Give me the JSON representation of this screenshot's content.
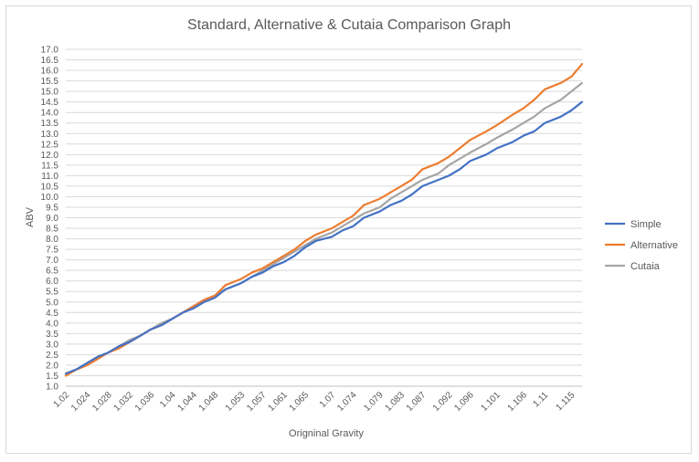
{
  "chart_data": {
    "type": "line",
    "title": "Standard, Alternative & Cutaia Comparison Graph",
    "xlabel": "Origninal Gravity",
    "ylabel": "ABV",
    "ylim": [
      1.0,
      17.0
    ],
    "ytick_step": 0.5,
    "grid": true,
    "legend_position": "right",
    "x": [
      1.02,
      1.022,
      1.024,
      1.026,
      1.028,
      1.03,
      1.032,
      1.034,
      1.036,
      1.038,
      1.04,
      1.042,
      1.044,
      1.046,
      1.048,
      1.05,
      1.053,
      1.055,
      1.057,
      1.059,
      1.061,
      1.063,
      1.065,
      1.067,
      1.07,
      1.072,
      1.074,
      1.076,
      1.079,
      1.081,
      1.083,
      1.085,
      1.087,
      1.09,
      1.092,
      1.094,
      1.096,
      1.099,
      1.101,
      1.104,
      1.106,
      1.108,
      1.11,
      1.113,
      1.115,
      1.117
    ],
    "x_tick_labels": [
      "1.02",
      "1.024",
      "1.028",
      "1.032",
      "1.036",
      "1.04",
      "1.044",
      "1.048",
      "1.053",
      "1.057",
      "1.061",
      "1.065",
      "1.07",
      "1.074",
      "1.079",
      "1.083",
      "1.087",
      "1.092",
      "1.096",
      "1.101",
      "1.106",
      "1.11",
      "1.115"
    ],
    "series": [
      {
        "name": "Simple",
        "color": "#4472c4",
        "values": [
          1.6,
          1.8,
          2.1,
          2.4,
          2.6,
          2.9,
          3.1,
          3.4,
          3.7,
          3.9,
          4.2,
          4.5,
          4.7,
          5.0,
          5.2,
          5.6,
          5.9,
          6.2,
          6.4,
          6.7,
          6.9,
          7.2,
          7.6,
          7.9,
          8.1,
          8.4,
          8.6,
          9.0,
          9.3,
          9.6,
          9.8,
          10.1,
          10.5,
          10.8,
          11.0,
          11.3,
          11.7,
          12.0,
          12.3,
          12.6,
          12.9,
          13.1,
          13.5,
          13.8,
          14.1,
          14.5
        ]
      },
      {
        "name": "Alternative",
        "color": "#ed7d31",
        "values": [
          1.5,
          1.8,
          2.0,
          2.3,
          2.6,
          2.8,
          3.1,
          3.4,
          3.7,
          3.9,
          4.2,
          4.5,
          4.8,
          5.1,
          5.3,
          5.8,
          6.1,
          6.4,
          6.6,
          6.9,
          7.2,
          7.5,
          7.9,
          8.2,
          8.5,
          8.8,
          9.1,
          9.6,
          9.9,
          10.2,
          10.5,
          10.8,
          11.3,
          11.6,
          11.9,
          12.3,
          12.7,
          13.1,
          13.4,
          13.9,
          14.2,
          14.6,
          15.1,
          15.4,
          15.7,
          16.3
        ]
      },
      {
        "name": "Cutaia",
        "color": "#a5a5a5",
        "values": [
          1.5,
          1.8,
          2.0,
          2.3,
          2.6,
          2.9,
          3.2,
          3.4,
          3.7,
          4.0,
          4.2,
          4.5,
          4.8,
          5.1,
          5.3,
          5.6,
          5.9,
          6.2,
          6.5,
          6.8,
          7.1,
          7.4,
          7.7,
          8.0,
          8.3,
          8.6,
          8.9,
          9.2,
          9.5,
          9.9,
          10.2,
          10.5,
          10.8,
          11.1,
          11.5,
          11.8,
          12.1,
          12.5,
          12.8,
          13.2,
          13.5,
          13.8,
          14.2,
          14.6,
          15.0,
          15.4
        ]
      }
    ]
  }
}
